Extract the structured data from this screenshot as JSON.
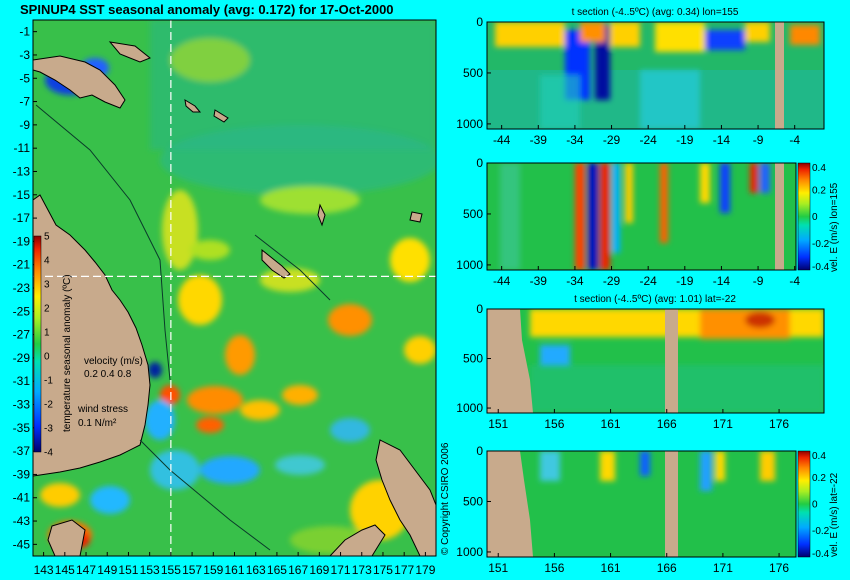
{
  "chart_data": [
    {
      "type": "heatmap",
      "title": "SPINUP4 SST seasonal anomaly (avg: 0.172) for 17-Oct-2000",
      "x_ticks": [
        "143",
        "145",
        "147",
        "149",
        "151",
        "153",
        "155",
        "157",
        "159",
        "161",
        "163",
        "165",
        "167",
        "169",
        "171",
        "173",
        "175",
        "177",
        "179"
      ],
      "y_ticks": [
        "-1",
        "-3",
        "-5",
        "-7",
        "-9",
        "-11",
        "-13",
        "-15",
        "-17",
        "-19",
        "-21",
        "-23",
        "-25",
        "-27",
        "-29",
        "-31",
        "-33",
        "-35",
        "-37",
        "-39",
        "-41",
        "-43",
        "-45"
      ],
      "xlim": [
        142,
        180
      ],
      "ylim": [
        -46,
        0
      ],
      "colorbar_label": "temperature seasonal anomaly (ºC)",
      "colorbar_ticks": [
        "5",
        "4",
        "3",
        "2",
        "1",
        "0",
        "-1",
        "-2",
        "-3",
        "-4"
      ],
      "colorbar_range": [
        -4,
        5
      ],
      "velocity_label": "velocity (m/s)",
      "velocity_scale": "0.2 0.4 0.8",
      "wind_label": "wind stress",
      "wind_scale": "0.1 N/m²",
      "crosshair": {
        "lon": 155,
        "lat": -22
      }
    },
    {
      "type": "heatmap",
      "title": "t section (-4..5ºC) (avg: 0.34) lon=155",
      "x_ticks": [
        "-44",
        "-39",
        "-34",
        "-29",
        "-24",
        "-19",
        "-14",
        "-9",
        "-4"
      ],
      "y_ticks": [
        "0",
        "500",
        "1000"
      ],
      "xlim": [
        -46,
        0
      ],
      "ylim": [
        1050,
        0
      ]
    },
    {
      "type": "heatmap",
      "title": "",
      "x_ticks": [
        "-44",
        "-39",
        "-34",
        "-29",
        "-24",
        "-19",
        "-14",
        "-9",
        "-4"
      ],
      "y_ticks": [
        "0",
        "500",
        "1000"
      ],
      "xlim": [
        -46,
        0
      ],
      "ylim": [
        1050,
        0
      ],
      "colorbar_label": "vel. E (m/s) lon=155",
      "colorbar_ticks": [
        "0.4",
        "0.2",
        "0",
        "-0.2",
        "-0.4"
      ],
      "colorbar_range": [
        -0.4,
        0.4
      ]
    },
    {
      "type": "heatmap",
      "title": "t section (-4..5ºC) (avg: 1.01) lat=-22",
      "x_ticks": [
        "151",
        "156",
        "161",
        "166",
        "171",
        "176"
      ],
      "y_ticks": [
        "0",
        "500",
        "1000"
      ],
      "xlim": [
        150,
        180
      ],
      "ylim": [
        1050,
        0
      ]
    },
    {
      "type": "heatmap",
      "title": "",
      "x_ticks": [
        "151",
        "156",
        "161",
        "166",
        "171",
        "176"
      ],
      "y_ticks": [
        "0",
        "500",
        "1000"
      ],
      "xlim": [
        150,
        180
      ],
      "ylim": [
        1050,
        0
      ],
      "colorbar_label": "vel. E (m/s) lat=-22",
      "colorbar_ticks": [
        "0.4",
        "0.2",
        "0",
        "-0.2",
        "-0.4"
      ],
      "colorbar_range": [
        -0.4,
        0.4
      ]
    }
  ],
  "copyright": "© Copyright CSIRO 2006",
  "colors": {
    "background": "#00ffff",
    "land": "#c8aa8c",
    "ocean_base": "#3cc24a"
  }
}
